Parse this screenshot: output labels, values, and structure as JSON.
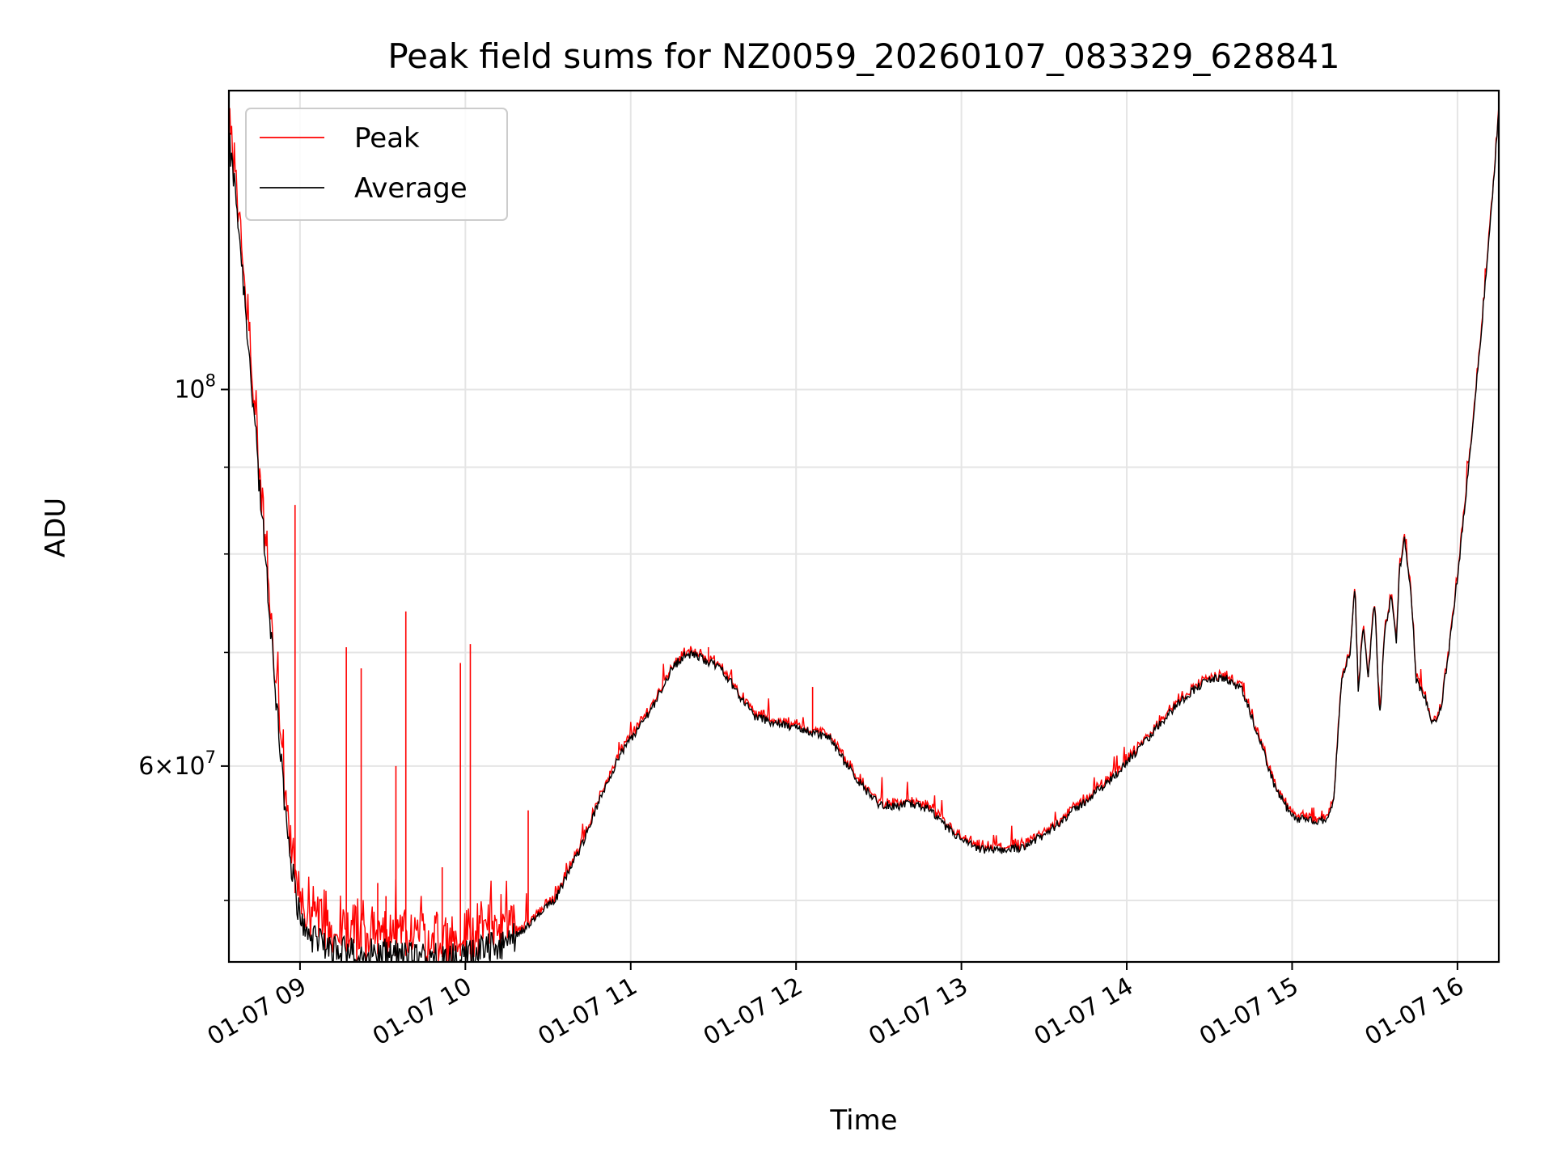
{
  "chart_data": {
    "type": "line",
    "title": "Peak field sums for NZ0059_20260107_083329_628841",
    "xlabel": "Time",
    "ylabel": "ADU",
    "y_scale": "log",
    "xlim_hours": [
      8.57,
      16.25
    ],
    "ylim": [
      46000000,
      150000000
    ],
    "x_ticks": [
      {
        "hour": 9,
        "label": "01-07 09"
      },
      {
        "hour": 10,
        "label": "01-07 10"
      },
      {
        "hour": 11,
        "label": "01-07 11"
      },
      {
        "hour": 12,
        "label": "01-07 12"
      },
      {
        "hour": 13,
        "label": "01-07 13"
      },
      {
        "hour": 14,
        "label": "01-07 14"
      },
      {
        "hour": 15,
        "label": "01-07 15"
      },
      {
        "hour": 16,
        "label": "01-07 16"
      }
    ],
    "y_major_ticks": [
      {
        "value": 100000000,
        "base": "10",
        "exp": "8",
        "mult": ""
      },
      {
        "value": 60000000,
        "base": "10",
        "exp": "7",
        "mult": "6×"
      }
    ],
    "y_minor_ticks": [
      50000000,
      70000000,
      80000000,
      90000000
    ],
    "grid": true,
    "legend": {
      "position": "top-left",
      "entries": [
        "Peak",
        "Average"
      ]
    },
    "colors": {
      "peak": "#ff0000",
      "average": "#000000",
      "grid": "#e5e5e5"
    },
    "series": [
      {
        "name": "Average",
        "color": "#000000",
        "x_hours": [
          8.57,
          8.62,
          8.67,
          8.72,
          8.77,
          8.82,
          8.87,
          8.92,
          8.97,
          9.02,
          9.1,
          9.2,
          9.3,
          9.45,
          9.6,
          9.75,
          9.9,
          10.0,
          10.1,
          10.25,
          10.4,
          10.55,
          10.7,
          10.85,
          10.95,
          11.05,
          11.15,
          11.25,
          11.32,
          11.38,
          11.45,
          11.55,
          11.65,
          11.75,
          11.9,
          12.0,
          12.1,
          12.2,
          12.3,
          12.4,
          12.5,
          12.6,
          12.7,
          12.8,
          12.9,
          13.0,
          13.1,
          13.2,
          13.35,
          13.5,
          13.6,
          13.75,
          13.9,
          14.0,
          14.1,
          14.2,
          14.3,
          14.4,
          14.5,
          14.6,
          14.7,
          14.8,
          14.9,
          15.0,
          15.1,
          15.15,
          15.2,
          15.25,
          15.3,
          15.35,
          15.38,
          15.4,
          15.43,
          15.46,
          15.5,
          15.53,
          15.56,
          15.6,
          15.63,
          15.65,
          15.68,
          15.72,
          15.75,
          15.8,
          15.85,
          15.9,
          15.95,
          16.0,
          16.05,
          16.1,
          16.15,
          16.2,
          16.25
        ],
        "values": [
          140000000,
          128000000,
          112000000,
          97000000,
          84000000,
          73000000,
          63000000,
          55500000,
          50500000,
          48300000,
          47200000,
          46800000,
          46600000,
          46500000,
          46400000,
          46300000,
          46300000,
          46400000,
          46700000,
          47300000,
          48500000,
          50200000,
          53800000,
          58500000,
          61300000,
          63200000,
          65500000,
          68500000,
          69700000,
          69800000,
          69300000,
          68500000,
          66200000,
          64200000,
          63500000,
          63200000,
          62800000,
          62400000,
          60200000,
          58400000,
          57000000,
          56800000,
          57000000,
          56600000,
          55300000,
          54300000,
          53600000,
          53500000,
          53700000,
          54600000,
          55700000,
          57200000,
          58900000,
          60300000,
          61800000,
          63500000,
          65200000,
          66500000,
          67500000,
          67600000,
          66400000,
          62300000,
          58200000,
          56000000,
          55700000,
          55700000,
          55800000,
          57000000,
          67500000,
          70000000,
          77000000,
          66000000,
          73000000,
          68000000,
          75000000,
          64000000,
          72000000,
          75500000,
          71000000,
          78500000,
          81500000,
          76000000,
          67500000,
          66000000,
          63500000,
          64800000,
          70500000,
          77500000,
          86500000,
          97000000,
          110000000,
          126000000,
          146000000
        ]
      },
      {
        "name": "Peak",
        "color": "#ff0000",
        "base": "average",
        "spikes": [
          {
            "hour": 8.97,
            "value": 85500000
          },
          {
            "hour": 9.28,
            "value": 70500000
          },
          {
            "hour": 9.37,
            "value": 68500000
          },
          {
            "hour": 9.58,
            "value": 60000000
          },
          {
            "hour": 9.64,
            "value": 74000000
          },
          {
            "hour": 9.97,
            "value": 69000000
          },
          {
            "hour": 10.03,
            "value": 70800000
          },
          {
            "hour": 10.38,
            "value": 56500000
          },
          {
            "hour": 11.47,
            "value": 70500000
          },
          {
            "hour": 12.1,
            "value": 66800000
          },
          {
            "hour": 9.47,
            "value": 51200000
          },
          {
            "hour": 9.86,
            "value": 52300000
          },
          {
            "hour": 9.52,
            "value": 50300000
          }
        ]
      }
    ]
  }
}
